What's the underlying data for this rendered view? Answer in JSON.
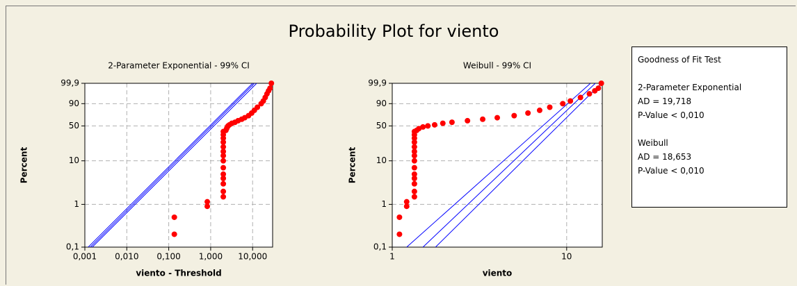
{
  "title": "Probability Plot for viento",
  "chart_data": [
    {
      "type": "scatter",
      "subtitle": "2-Parameter Exponential - 99% CI",
      "xlabel": "viento - Threshold",
      "ylabel": "Percent",
      "xscale": "log",
      "yscale": "probability",
      "grid": true,
      "xlim": [
        0.001,
        30
      ],
      "ylim": [
        0.1,
        99.9
      ],
      "xticks": [
        {
          "value": 0.001,
          "label": "0,001"
        },
        {
          "value": 0.01,
          "label": "0,010"
        },
        {
          "value": 0.1,
          "label": "0,100"
        },
        {
          "value": 1,
          "label": "1,000"
        },
        {
          "value": 10,
          "label": "10,000"
        }
      ],
      "yticks": [
        {
          "value": 0.1,
          "label": "0,1"
        },
        1,
        10,
        50,
        90,
        {
          "value": 99.9,
          "label": "99,9"
        }
      ],
      "color": "#ff0000",
      "x": [
        0.136,
        0.136,
        0.83,
        0.83,
        2,
        2,
        2,
        2,
        2,
        2,
        2,
        2,
        2,
        2,
        2,
        2,
        2,
        2,
        2.3,
        2.4,
        2.5,
        2.6,
        2.8,
        3.2,
        3.8,
        4.5,
        5.5,
        6.5,
        8,
        9.5,
        11,
        13,
        16,
        18,
        20,
        22,
        24,
        26,
        28
      ],
      "values": [
        0.2,
        0.5,
        0.9,
        1.15,
        1.5,
        2,
        3,
        4,
        5,
        7,
        10,
        13,
        16,
        20,
        25,
        30,
        35,
        40,
        42,
        45,
        48,
        50,
        52,
        55,
        57,
        60,
        63,
        66,
        70,
        75,
        80,
        85,
        90,
        93,
        96,
        98,
        99,
        99.5,
        99.9
      ],
      "fit_lines": [
        {
          "color": "#0000ff",
          "x": [
            0.0012,
            10
          ],
          "values": [
            0.1,
            99.9
          ]
        },
        {
          "color": "#0000ff",
          "x": [
            0.00135,
            11
          ],
          "values": [
            0.1,
            99.9
          ]
        },
        {
          "color": "#0000ff",
          "x": [
            0.0015,
            12.5
          ],
          "values": [
            0.1,
            99.9
          ]
        }
      ]
    },
    {
      "type": "scatter",
      "subtitle": "Weibull - 99% CI",
      "xlabel": "viento",
      "ylabel": "Percent",
      "xscale": "log",
      "yscale": "probability",
      "grid": true,
      "xlim": [
        1,
        16
      ],
      "ylim": [
        0.1,
        99.9
      ],
      "xticks": [
        1,
        10
      ],
      "yticks": [
        {
          "value": 0.1,
          "label": "0,1"
        },
        1,
        10,
        50,
        90,
        {
          "value": 99.9,
          "label": "99,9"
        }
      ],
      "color": "#ff0000",
      "x": [
        1.1,
        1.1,
        1.21,
        1.21,
        1.34,
        1.34,
        1.34,
        1.34,
        1.34,
        1.34,
        1.34,
        1.34,
        1.34,
        1.34,
        1.34,
        1.34,
        1.34,
        1.34,
        1.38,
        1.42,
        1.5,
        1.6,
        1.75,
        1.95,
        2.2,
        2.7,
        3.3,
        4,
        5,
        6,
        7,
        8,
        9.5,
        10.5,
        12,
        13.5,
        14.5,
        15.2,
        15.8
      ],
      "values": [
        0.2,
        0.5,
        0.9,
        1.15,
        1.5,
        2,
        3,
        4,
        5,
        7,
        10,
        13,
        16,
        20,
        25,
        30,
        35,
        40,
        42,
        45,
        48,
        50,
        52,
        55,
        57,
        60,
        63,
        66,
        70,
        75,
        80,
        85,
        90,
        93,
        96,
        98,
        99,
        99.5,
        99.9
      ],
      "fit_lines": [
        {
          "color": "#0000ff",
          "x": [
            1.21,
            13.7
          ],
          "values": [
            0.1,
            99.9
          ]
        },
        {
          "color": "#0000ff",
          "x": [
            1.5,
            14.6
          ],
          "values": [
            0.1,
            99.9
          ]
        },
        {
          "color": "#0000ff",
          "x": [
            1.77,
            15.8
          ],
          "values": [
            0.1,
            99.9
          ]
        }
      ]
    }
  ],
  "goodness_of_fit": {
    "title": "Goodness of Fit Test",
    "entries": [
      {
        "name": "2-Parameter Exponential",
        "ad": "AD = 19,718",
        "p": "P-Value < 0,010"
      },
      {
        "name": "Weibull",
        "ad": "AD = 18,653",
        "p": "P-Value < 0,010"
      }
    ]
  }
}
